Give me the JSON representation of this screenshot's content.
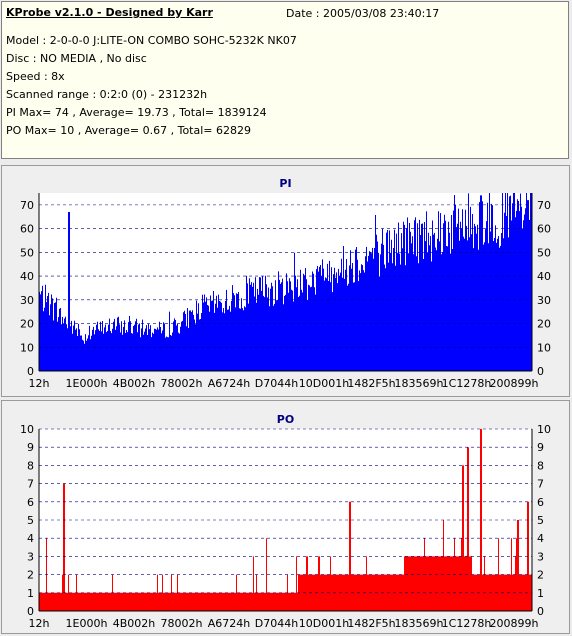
{
  "info": {
    "title": "KProbe v2.1.0 - Designed by Karr",
    "date": "Date : 2005/03/08 23:40:17",
    "lines": [
      "Model : 2-0-0-0 J:LITE-ON COMBO SOHC-5232K NK07",
      "Disc : NO MEDIA , No disc",
      "Speed : 8x",
      "Scanned range : 0:2:0 (0) - 231232h",
      "PI Max= 74 , Average= 19.73 , Total= 1839124",
      "PO Max= 10 , Average= 0.67 , Total= 62829"
    ]
  },
  "colors": {
    "pi_series": "#0000ff",
    "po_series": "#ff0000",
    "grid": "#000080",
    "plot_bg": "#ffffff",
    "panel_bg": "#efefef"
  },
  "chart_data": [
    {
      "type": "bar",
      "title": "PI",
      "xlabel": "",
      "ylabel": "",
      "x_tick_labels": [
        "12h",
        "1E000h",
        "4B002h",
        "78002h",
        "A6724h",
        "D7044h",
        "10D001h",
        "1482F5h",
        "183569h",
        "1C1278h",
        "200899h"
      ],
      "x_range": [
        "0:2:0 (0)",
        "231232h"
      ],
      "ylim": [
        0,
        75
      ],
      "y_ticks": [
        0,
        10,
        20,
        30,
        40,
        50,
        60,
        70
      ],
      "y_axis_both_sides": true,
      "grid": "horizontal dashed",
      "max": 74,
      "average": 19.73,
      "total": 1839124,
      "spikes": [
        {
          "position": 0.06,
          "value": 67
        },
        {
          "position": 0.895,
          "value": 74
        },
        {
          "position": 0.99,
          "value": 72
        }
      ],
      "profile": [
        [
          0.0,
          30
        ],
        [
          0.02,
          27
        ],
        [
          0.04,
          22
        ],
        [
          0.05,
          20
        ],
        [
          0.07,
          17
        ],
        [
          0.09,
          13
        ],
        [
          0.11,
          16
        ],
        [
          0.15,
          18
        ],
        [
          0.2,
          17
        ],
        [
          0.25,
          16
        ],
        [
          0.28,
          18
        ],
        [
          0.3,
          21
        ],
        [
          0.33,
          25
        ],
        [
          0.37,
          27
        ],
        [
          0.4,
          29
        ],
        [
          0.45,
          32
        ],
        [
          0.5,
          33
        ],
        [
          0.53,
          35
        ],
        [
          0.56,
          36
        ],
        [
          0.6,
          40
        ],
        [
          0.65,
          44
        ],
        [
          0.7,
          48
        ],
        [
          0.75,
          52
        ],
        [
          0.8,
          55
        ],
        [
          0.85,
          58
        ],
        [
          0.9,
          60
        ],
        [
          0.95,
          62
        ],
        [
          1.0,
          63
        ]
      ],
      "series": [
        {
          "name": "PI",
          "color": "#0000ff"
        }
      ]
    },
    {
      "type": "bar",
      "title": "PO",
      "xlabel": "",
      "ylabel": "",
      "x_tick_labels": [
        "12h",
        "1E000h",
        "4B002h",
        "78002h",
        "A6724h",
        "D7044h",
        "10D001h",
        "1482F5h",
        "183569h",
        "1C1278h",
        "200899h"
      ],
      "x_range": [
        "0:2:0 (0)",
        "231232h"
      ],
      "ylim": [
        0,
        10
      ],
      "y_ticks": [
        0,
        1,
        2,
        3,
        4,
        5,
        6,
        7,
        8,
        9,
        10
      ],
      "y_axis_both_sides": true,
      "grid": "horizontal dashed",
      "max": 10,
      "average": 0.67,
      "total": 62829,
      "spikes": [
        {
          "position": 0.05,
          "value": 7
        },
        {
          "position": 0.63,
          "value": 6
        },
        {
          "position": 0.86,
          "value": 8
        },
        {
          "position": 0.87,
          "value": 9
        },
        {
          "position": 0.895,
          "value": 10
        },
        {
          "position": 0.97,
          "value": 5
        },
        {
          "position": 0.99,
          "value": 6
        }
      ],
      "profile": [
        [
          0.0,
          1
        ],
        [
          0.3,
          1
        ],
        [
          0.4,
          1
        ],
        [
          0.5,
          1
        ],
        [
          0.55,
          2
        ],
        [
          0.62,
          2
        ],
        [
          0.7,
          2
        ],
        [
          0.78,
          3
        ],
        [
          0.85,
          3
        ],
        [
          0.9,
          2
        ],
        [
          1.0,
          2
        ]
      ],
      "series": [
        {
          "name": "PO",
          "color": "#ff0000"
        }
      ]
    }
  ]
}
